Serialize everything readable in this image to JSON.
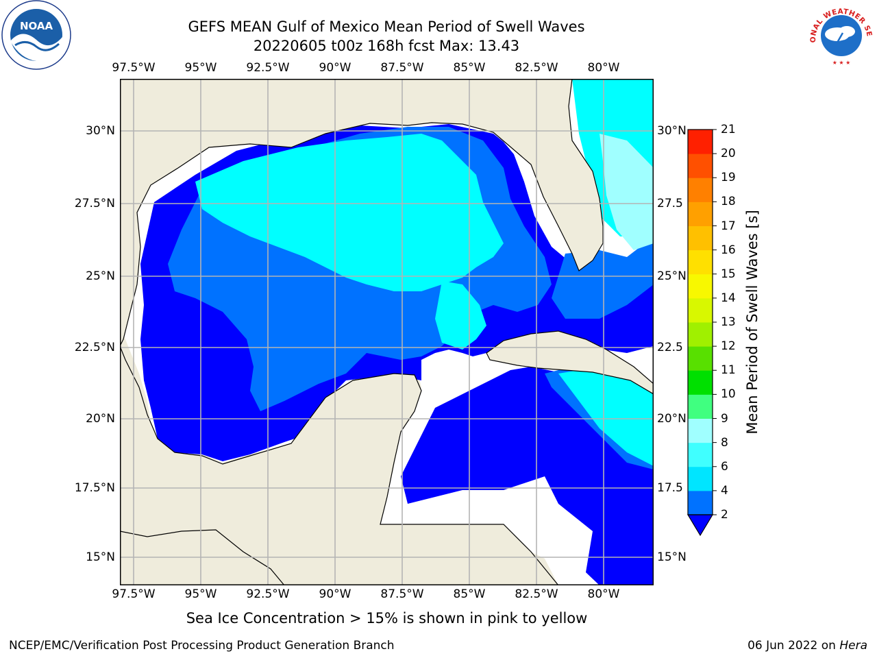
{
  "title_line1": "GEFS MEAN Gulf of Mexico Mean Period of Swell Waves",
  "title_line2": "20220605 t00z 168h fcst   Max: 13.43",
  "lon_labels": [
    "97.5°W",
    "95°W",
    "92.5°W",
    "90°W",
    "87.5°W",
    "85°W",
    "82.5°W",
    "80°W"
  ],
  "lat_labels_left": [
    "30°N",
    "27.5°N",
    "25°N",
    "22.5°N",
    "20°N",
    "17.5°N",
    "15°N"
  ],
  "lat_labels_right": [
    "30°N",
    "27.5",
    "25°N",
    "22.5",
    "20°N",
    "17.5",
    "15°N"
  ],
  "colorbar": {
    "label": "Mean Period of Swell Waves [s]",
    "ticks": [
      "2",
      "4",
      "6",
      "8",
      "9",
      "10",
      "11",
      "12",
      "13",
      "14",
      "15",
      "16",
      "17",
      "18",
      "19",
      "20",
      "21"
    ],
    "colors": [
      "#0072ff",
      "#00e5ff",
      "#40ffff",
      "#a0ffff",
      "#40ff80",
      "#00e000",
      "#58e000",
      "#a0f000",
      "#d8f800",
      "#f8f800",
      "#ffe000",
      "#ffc000",
      "#ffa000",
      "#ff8000",
      "#ff5000",
      "#ff2000"
    ],
    "underflow_color": "#0000ff"
  },
  "bottom_note": "Sea Ice Concentration > 15% is shown in pink to yellow",
  "footer_left": "NCEP/EMC/Verification Post Processing Product Generation Branch",
  "footer_right_prefix": "06 Jun 2022 on ",
  "footer_right_host": "Hera",
  "logos": {
    "noaa_text": "NOAA",
    "nws_text": "NATIONAL WEATHER SERVICE"
  },
  "map_colors": {
    "land": "#efecdc",
    "ocean_none": "#ffffff",
    "period_2_4": "#0000ff",
    "period_4_6": "#0072ff",
    "period_6_8": "#00ffff",
    "period_8_9": "#a0ffff",
    "period_10_12": "#5ef000",
    "period_11": "#00e000",
    "grid": "#b4b4b4",
    "coast": "#000000"
  }
}
